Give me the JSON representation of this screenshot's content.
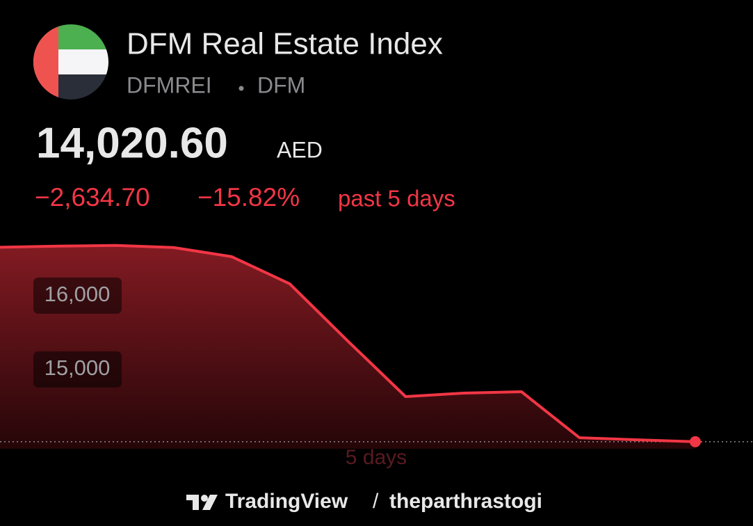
{
  "header": {
    "title": "DFM Real Estate Index",
    "symbol": "DFMREI",
    "exchange": "DFM",
    "price": "14,020.60",
    "currency": "AED",
    "change": "−2,634.70",
    "change_percent": "−15.82%",
    "period": "past 5 days"
  },
  "chart_data": {
    "type": "line",
    "xlabel": "5 days",
    "color": "#f23645",
    "categories": [
      null,
      null,
      null,
      null,
      null,
      null,
      null,
      null,
      null,
      null,
      null,
      null,
      null
    ],
    "values": [
      16655,
      16670,
      16679,
      16651,
      16528,
      16160,
      15387,
      14632,
      14679,
      14698,
      14075,
      14047,
      14020.6
    ],
    "ylim": [
      13925,
      16800
    ],
    "yticks": [
      {
        "value": 15000,
        "label": "15,000"
      },
      {
        "value": 16000,
        "label": "16,000"
      }
    ]
  },
  "footer": {
    "brand": "TradingView",
    "separator": "/",
    "user": "theparthrastogi"
  }
}
